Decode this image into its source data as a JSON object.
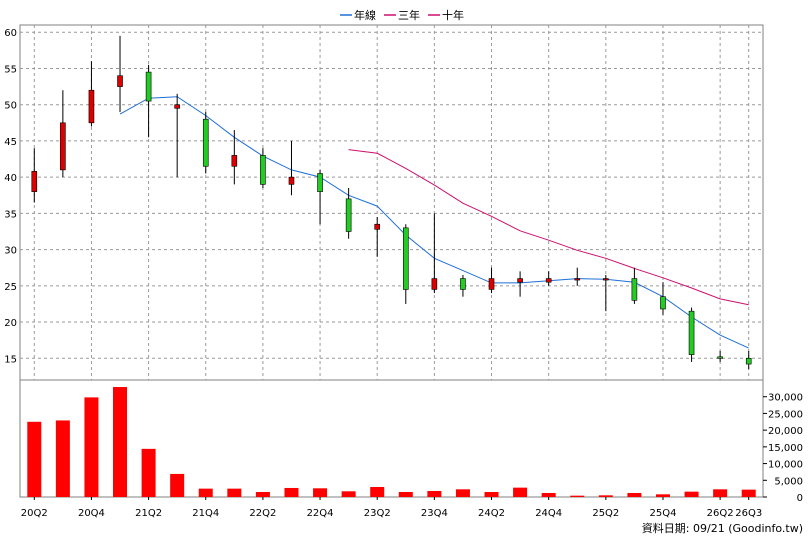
{
  "legend": [
    {
      "label": "年線",
      "color": "#1f6fd6"
    },
    {
      "label": "三年",
      "color": "#cc1070"
    },
    {
      "label": "十年",
      "color": "#cc1070"
    }
  ],
  "footer": "資料日期: 09/21 (Goodinfo.tw)",
  "chart_data": [
    {
      "type": "candlestick",
      "ylim": [
        12,
        61
      ],
      "yticks": [
        15,
        20,
        25,
        30,
        35,
        40,
        45,
        50,
        55,
        60
      ],
      "x_tick_labels": [
        "20Q2",
        "20Q4",
        "21Q2",
        "21Q4",
        "22Q2",
        "22Q4",
        "23Q2",
        "23Q4",
        "24Q2",
        "24Q4",
        "25Q2",
        "25Q4",
        "26Q2",
        "26Q3"
      ],
      "x_tick_index": [
        0,
        2,
        4,
        6,
        8,
        10,
        12,
        14,
        16,
        18,
        20,
        22,
        24,
        25
      ],
      "grid": true,
      "candles": [
        {
          "o": 38.0,
          "h": 44.0,
          "l": 36.5,
          "c": 40.8
        },
        {
          "o": 41.0,
          "h": 52.0,
          "l": 40.0,
          "c": 47.5
        },
        {
          "o": 47.5,
          "h": 56.0,
          "l": 47.0,
          "c": 52.0
        },
        {
          "o": 52.5,
          "h": 59.5,
          "l": 49.0,
          "c": 54.0
        },
        {
          "o": 54.5,
          "h": 55.5,
          "l": 45.5,
          "c": 50.5
        },
        {
          "o": 49.5,
          "h": 51.5,
          "l": 40.0,
          "c": 50.0
        },
        {
          "o": 48.0,
          "h": 49.0,
          "l": 40.5,
          "c": 41.5
        },
        {
          "o": 41.5,
          "h": 46.5,
          "l": 39.0,
          "c": 43.0
        },
        {
          "o": 43.0,
          "h": 44.0,
          "l": 38.5,
          "c": 39.0
        },
        {
          "o": 39.0,
          "h": 45.0,
          "l": 37.5,
          "c": 40.0
        },
        {
          "o": 40.5,
          "h": 41.0,
          "l": 33.5,
          "c": 38.0
        },
        {
          "o": 37.0,
          "h": 38.5,
          "l": 31.5,
          "c": 32.5
        },
        {
          "o": 32.8,
          "h": 34.5,
          "l": 29.0,
          "c": 33.5
        },
        {
          "o": 33.0,
          "h": 33.5,
          "l": 22.5,
          "c": 24.5
        },
        {
          "o": 24.5,
          "h": 35.0,
          "l": 24.0,
          "c": 26.0
        },
        {
          "o": 26.0,
          "h": 26.5,
          "l": 23.5,
          "c": 24.5
        },
        {
          "o": 24.5,
          "h": 27.5,
          "l": 24.0,
          "c": 26.0
        },
        {
          "o": 25.5,
          "h": 27.0,
          "l": 23.5,
          "c": 26.0
        },
        {
          "o": 25.5,
          "h": 27.0,
          "l": 25.0,
          "c": 26.0
        },
        {
          "o": 26.0,
          "h": 27.5,
          "l": 25.0,
          "c": 26.0
        },
        {
          "o": 26.0,
          "h": 26.5,
          "l": 21.5,
          "c": 26.0
        },
        {
          "o": 26.0,
          "h": 27.5,
          "l": 22.5,
          "c": 23.0
        },
        {
          "o": 23.5,
          "h": 25.5,
          "l": 21.0,
          "c": 21.8
        },
        {
          "o": 21.5,
          "h": 22.0,
          "l": 14.5,
          "c": 15.5
        },
        {
          "o": 15.2,
          "h": 16.0,
          "l": 14.5,
          "c": 15.0
        },
        {
          "o": 15.0,
          "h": 16.0,
          "l": 13.5,
          "c": 14.2
        }
      ],
      "series": [
        {
          "name": "年線",
          "color": "#1f6fd6",
          "values": [
            null,
            null,
            null,
            48.7,
            50.9,
            51.1,
            48.5,
            45.5,
            42.9,
            41.0,
            40.0,
            37.5,
            36.0,
            32.0,
            28.8,
            27.1,
            25.4,
            25.4,
            25.7,
            26.0,
            25.9,
            25.5,
            23.5,
            20.7,
            18.2,
            16.4
          ]
        },
        {
          "name": "三年",
          "color": "#cc1070",
          "values": [
            null,
            null,
            null,
            null,
            null,
            null,
            null,
            null,
            null,
            null,
            null,
            43.8,
            43.3,
            41.2,
            38.9,
            36.4,
            34.6,
            32.6,
            31.3,
            29.9,
            28.8,
            27.4,
            26.1,
            24.7,
            23.2,
            22.4
          ]
        }
      ]
    },
    {
      "type": "bar",
      "ylim": [
        0,
        35000
      ],
      "yticks": [
        0,
        5000,
        10000,
        15000,
        20000,
        25000,
        30000
      ],
      "ytick_labels": [
        "0",
        "5,000",
        "10,000",
        "15,000",
        "20,000",
        "25,000",
        "30,000"
      ],
      "color": "#ff0000",
      "values": [
        22500,
        22900,
        29800,
        32900,
        14400,
        6900,
        2500,
        2500,
        1500,
        2700,
        2600,
        1700,
        3000,
        1500,
        1800,
        2300,
        1500,
        2800,
        1200,
        400,
        500,
        1200,
        800,
        1600,
        2300,
        2200
      ]
    }
  ]
}
